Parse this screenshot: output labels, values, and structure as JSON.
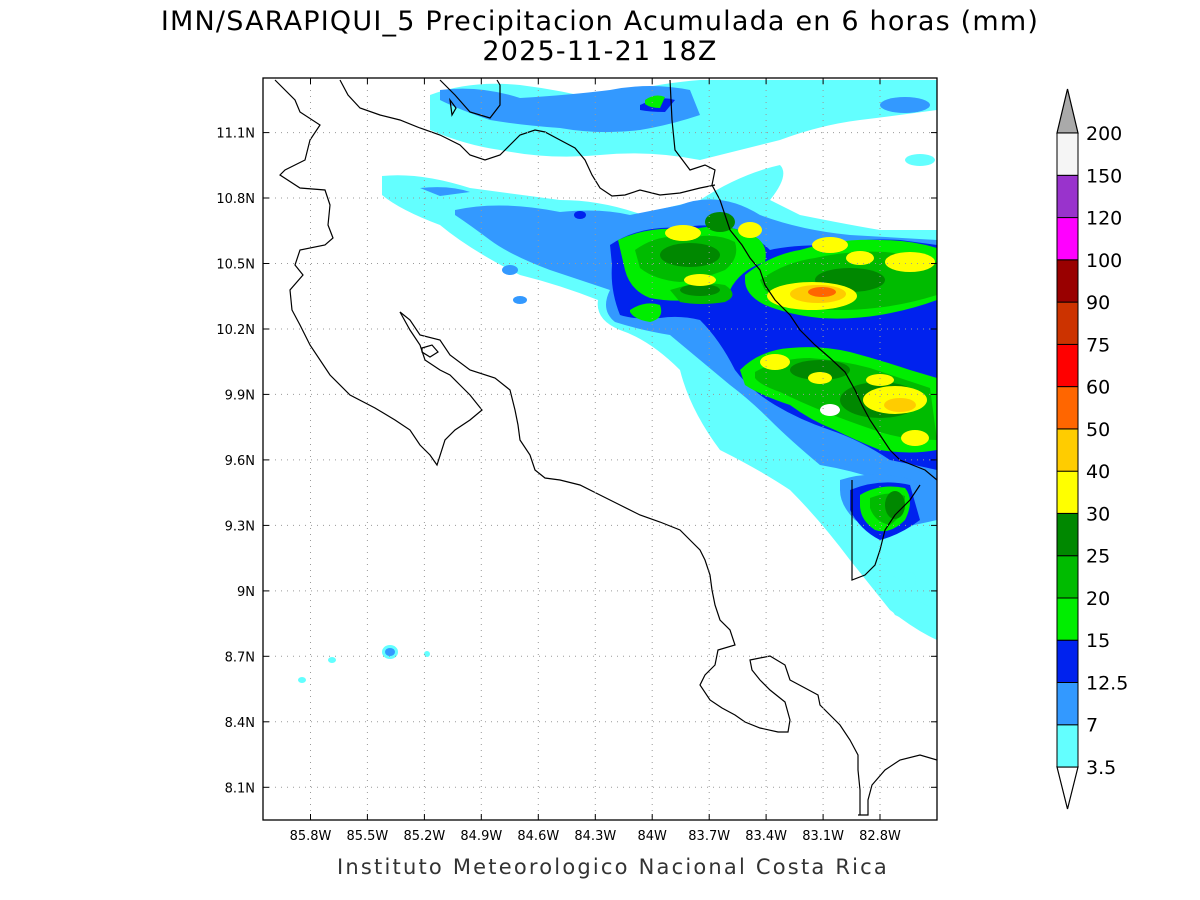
{
  "title": "IMN/SARAPIQUI_5 Precipitacion Acumulada en 6 horas (mm)",
  "subtitle": "2025-11-21 18Z",
  "footer": "Instituto Meteorologico Nacional Costa Rica",
  "map": {
    "lon_range": [
      -86.05,
      -82.5
    ],
    "lat_range": [
      7.95,
      11.35
    ],
    "lon_ticks": [
      -85.8,
      -85.5,
      -85.2,
      -84.9,
      -84.6,
      -84.3,
      -84.0,
      -83.7,
      -83.4,
      -83.1,
      -82.8
    ],
    "lon_tick_labels": [
      "85.8W",
      "85.5W",
      "85.2W",
      "84.9W",
      "84.6W",
      "84.3W",
      "84W",
      "83.7W",
      "83.4W",
      "83.1W",
      "82.8W"
    ],
    "lat_ticks": [
      11.1,
      10.8,
      10.5,
      10.2,
      9.9,
      9.6,
      9.3,
      9.0,
      8.7,
      8.4,
      8.1
    ],
    "lat_tick_labels": [
      "11.1N",
      "10.8N",
      "10.5N",
      "10.2N",
      "9.9N",
      "9.6N",
      "9.3N",
      "9N",
      "8.7N",
      "8.4N",
      "8.1N"
    ],
    "grid": "dotted"
  },
  "colorbar": {
    "units": "mm",
    "labels": [
      "3.5",
      "7",
      "12.5",
      "15",
      "20",
      "25",
      "30",
      "40",
      "50",
      "60",
      "75",
      "90",
      "100",
      "120",
      "150",
      "200"
    ],
    "colors": [
      "#63ffff",
      "#3399ff",
      "#0022ee",
      "#00ee00",
      "#00bb00",
      "#008800",
      "#ffff00",
      "#ffcc00",
      "#ff6600",
      "#ff0000",
      "#cc3300",
      "#990000",
      "#ff00ff",
      "#9933cc",
      "#f5f5f5"
    ],
    "over_color": "#aaaaaa",
    "under_color": "#ffffff"
  }
}
